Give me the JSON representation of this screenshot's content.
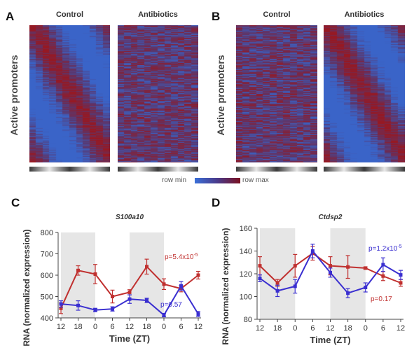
{
  "figure": {
    "panel_letters": [
      "A",
      "B",
      "C",
      "D"
    ],
    "heatmap_titles": {
      "a_left": "Control",
      "a_right": "Antibiotics",
      "b_left": "Control",
      "b_right": "Antibiotics"
    },
    "heatmap_ylabel_a": "Active promoters",
    "heatmap_ylabel_b": "Active promoters",
    "colorbar": {
      "min_label": "row min",
      "max_label": "row max",
      "colors": [
        "#3a6fd8",
        "#7a1020"
      ]
    }
  },
  "chart_data": [
    {
      "type": "line",
      "title": "S100a10",
      "xlabel": "Time (ZT)",
      "ylabel": "RNA (normalized expression)",
      "x": [
        "12",
        "18",
        "0",
        "6",
        "12",
        "18",
        "0",
        "6",
        "12"
      ],
      "ylim": [
        400,
        800
      ],
      "yticks": [
        400,
        500,
        600,
        700,
        800
      ],
      "shaded_intervals": [
        [
          0,
          2
        ],
        [
          4,
          6
        ]
      ],
      "series": [
        {
          "color": "#c0302f",
          "values": [
            445,
            622,
            605,
            500,
            520,
            640,
            558,
            537,
            600
          ],
          "errors": [
            25,
            22,
            45,
            30,
            12,
            35,
            25,
            15,
            18
          ]
        },
        {
          "color": "#3a2fd0",
          "values": [
            465,
            458,
            437,
            442,
            488,
            482,
            413,
            550,
            418
          ],
          "errors": [
            15,
            22,
            8,
            10,
            20,
            10,
            8,
            20,
            12
          ]
        }
      ],
      "annotations": [
        {
          "text": "p=5.4x10",
          "sup": "-5",
          "color": "#c0302f"
        },
        {
          "text": "p=0.57",
          "sup": "",
          "color": "#3a2fd0"
        }
      ]
    },
    {
      "type": "line",
      "title": "Ctdsp2",
      "xlabel": "Time (ZT)",
      "ylabel": "RNA (normalized expression)",
      "x": [
        "12",
        "18",
        "0",
        "6",
        "12",
        "18",
        "0",
        "6",
        "12"
      ],
      "ylim": [
        80,
        160
      ],
      "yticks": [
        80,
        100,
        120,
        140,
        160
      ],
      "shaded_intervals": [
        [
          0,
          2
        ],
        [
          4,
          6
        ]
      ],
      "series": [
        {
          "color": "#c0302f",
          "values": [
            127,
            112,
            127,
            138,
            127,
            126,
            125,
            118,
            112
          ],
          "errors": [
            8,
            3,
            10,
            6,
            8,
            10,
            1,
            4,
            3
          ]
        },
        {
          "color": "#3a2fd0",
          "values": [
            116,
            105,
            109,
            140,
            121,
            103,
            108,
            128,
            119
          ],
          "errors": [
            3,
            5,
            6,
            6,
            4,
            4,
            4,
            6,
            4
          ]
        }
      ],
      "annotations": [
        {
          "text": "p=1.2x10",
          "sup": "-5",
          "color": "#3a2fd0"
        },
        {
          "text": "p=0.17",
          "sup": "",
          "color": "#c0302f"
        }
      ]
    }
  ]
}
